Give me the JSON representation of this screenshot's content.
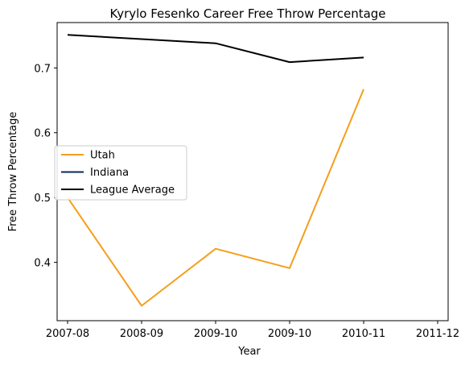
{
  "chart_data": {
    "type": "line",
    "title": "Kyrylo Fesenko Career Free Throw Percentage",
    "xlabel": "Year",
    "ylabel": "Free Throw Percentage",
    "x_ticks": [
      "2007-08",
      "2008-09",
      "2009-10",
      "2009-10",
      "2010-11",
      "2011-12"
    ],
    "x_domain": [
      0,
      5
    ],
    "ylim": [
      0.31,
      0.77
    ],
    "y_ticks": [
      0.4,
      0.5,
      0.6,
      0.7
    ],
    "y_tick_labels": [
      "0.4",
      "0.5",
      "0.6",
      "0.7"
    ],
    "grid": false,
    "legend_position": "center-left",
    "series": [
      {
        "name": "Utah",
        "color": "#f59e1c",
        "points": [
          [
            0,
            0.5
          ],
          [
            1,
            0.333
          ],
          [
            2,
            0.421
          ],
          [
            3,
            0.391
          ],
          [
            4,
            0.667
          ]
        ]
      },
      {
        "name": "Indiana",
        "color": "#0a2a57",
        "points": []
      },
      {
        "name": "League Average",
        "color": "#000000",
        "points": [
          [
            0,
            0.751
          ],
          [
            2,
            0.738
          ],
          [
            3,
            0.709
          ],
          [
            4,
            0.716
          ]
        ]
      }
    ]
  }
}
